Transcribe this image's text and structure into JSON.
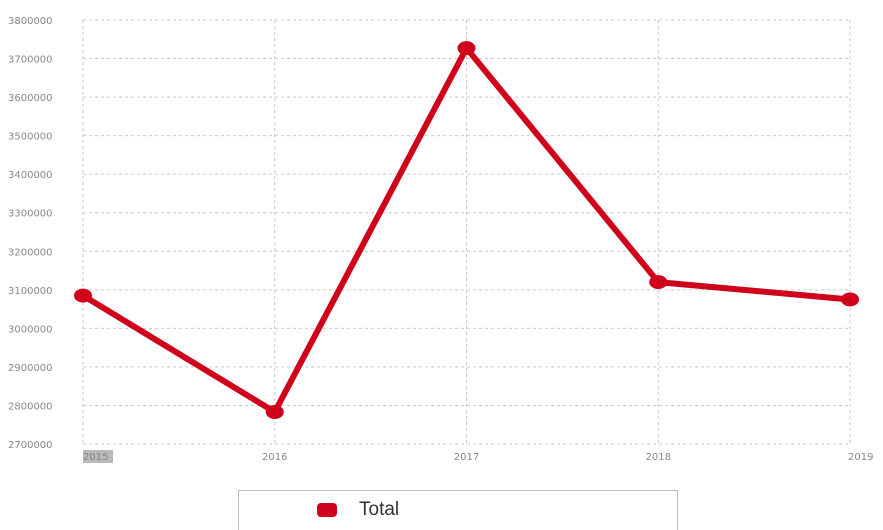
{
  "chart_data": {
    "type": "line",
    "title": "",
    "xlabel": "",
    "ylabel": "",
    "categories": [
      "2015",
      "2016",
      "2017",
      "2018",
      "2019"
    ],
    "series": [
      {
        "name": "Total",
        "values": [
          3085000,
          2783000,
          3727000,
          3120000,
          3075000
        ]
      }
    ],
    "ylim": [
      2700000,
      3800000
    ],
    "yticks": [
      "2700000",
      "2800000",
      "2900000",
      "3000000",
      "3100000",
      "3200000",
      "3300000",
      "3400000",
      "3500000",
      "3600000",
      "3700000",
      "3800000"
    ],
    "grid": true,
    "legend": "bottom-center",
    "colors": {
      "series": "#d0021b",
      "grid": "#c8c8c8",
      "ticks": "#888888"
    }
  }
}
